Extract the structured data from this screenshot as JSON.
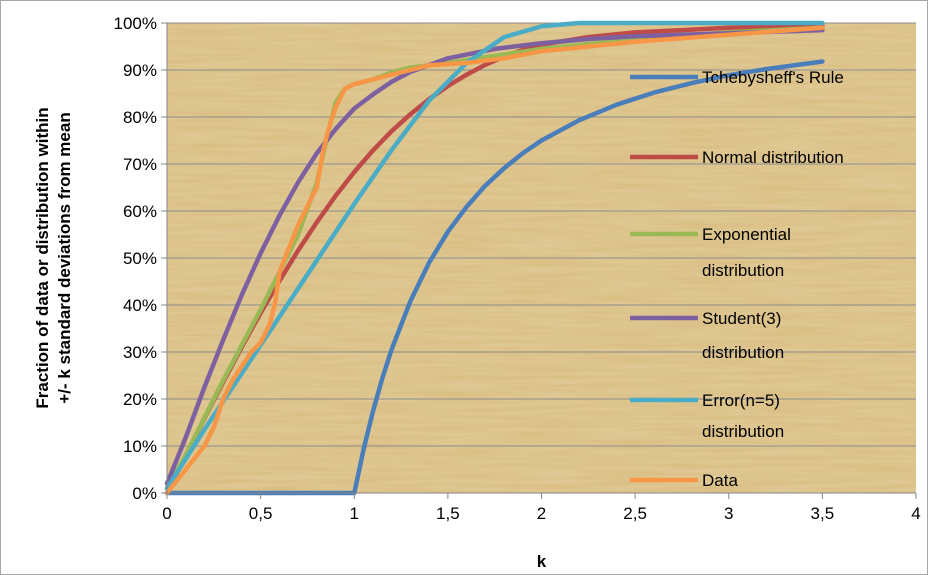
{
  "chart_data": {
    "type": "line",
    "title": "",
    "xlabel": "k",
    "ylabel_lines": [
      "Fraction of data or distribution within",
      "+/- k standard deviations from mean"
    ],
    "xlim": [
      0,
      4
    ],
    "ylim": [
      0,
      1
    ],
    "x_ticks": [
      0,
      0.5,
      1,
      1.5,
      2,
      2.5,
      3,
      3.5,
      4
    ],
    "x_tick_labels": [
      "0",
      "0,5",
      "1",
      "1,5",
      "2",
      "2,5",
      "3",
      "3,5",
      "4"
    ],
    "y_ticks": [
      0,
      0.1,
      0.2,
      0.3,
      0.4,
      0.5,
      0.6,
      0.7,
      0.8,
      0.9,
      1.0
    ],
    "y_tick_labels": [
      "0%",
      "10%",
      "20%",
      "30%",
      "40%",
      "50%",
      "60%",
      "70%",
      "80%",
      "90%",
      "100%"
    ],
    "grid": "horizontal",
    "legend_position": "right",
    "plot_background": "papyrus texture (tan #e2c88c)",
    "series": [
      {
        "name": "Tchebysheff's Rule",
        "legend_lines": [
          "Tchebysheff's Rule"
        ],
        "color": "#4a7ebb",
        "points": [
          [
            0,
            0
          ],
          [
            0.5,
            0
          ],
          [
            1,
            0
          ],
          [
            1.05,
            0.093
          ],
          [
            1.1,
            0.174
          ],
          [
            1.15,
            0.244
          ],
          [
            1.2,
            0.306
          ],
          [
            1.3,
            0.408
          ],
          [
            1.4,
            0.49
          ],
          [
            1.5,
            0.556
          ],
          [
            1.6,
            0.609
          ],
          [
            1.7,
            0.654
          ],
          [
            1.8,
            0.691
          ],
          [
            1.9,
            0.723
          ],
          [
            2,
            0.75
          ],
          [
            2.2,
            0.793
          ],
          [
            2.4,
            0.826
          ],
          [
            2.6,
            0.852
          ],
          [
            2.8,
            0.872
          ],
          [
            3,
            0.889
          ],
          [
            3.2,
            0.902
          ],
          [
            3.5,
            0.918
          ]
        ]
      },
      {
        "name": "Normal distribution",
        "legend_lines": [
          "Normal distribution"
        ],
        "color": "#be4b48",
        "points": [
          [
            0,
            0
          ],
          [
            0.1,
            0.08
          ],
          [
            0.2,
            0.159
          ],
          [
            0.3,
            0.236
          ],
          [
            0.4,
            0.311
          ],
          [
            0.5,
            0.383
          ],
          [
            0.6,
            0.451
          ],
          [
            0.7,
            0.516
          ],
          [
            0.8,
            0.576
          ],
          [
            0.9,
            0.632
          ],
          [
            1,
            0.683
          ],
          [
            1.1,
            0.729
          ],
          [
            1.2,
            0.77
          ],
          [
            1.3,
            0.806
          ],
          [
            1.4,
            0.838
          ],
          [
            1.5,
            0.866
          ],
          [
            1.6,
            0.89
          ],
          [
            1.7,
            0.911
          ],
          [
            1.8,
            0.928
          ],
          [
            1.9,
            0.943
          ],
          [
            2,
            0.954
          ],
          [
            2.25,
            0.97
          ],
          [
            2.5,
            0.98
          ],
          [
            2.75,
            0.985
          ],
          [
            3,
            0.99
          ],
          [
            3.5,
            0.995
          ]
        ]
      },
      {
        "name": "Exponential distribution",
        "legend_lines": [
          "Exponential",
          "distribution"
        ],
        "color": "#98b954",
        "points": [
          [
            0,
            0.01
          ],
          [
            0.1,
            0.08
          ],
          [
            0.2,
            0.16
          ],
          [
            0.3,
            0.24
          ],
          [
            0.4,
            0.315
          ],
          [
            0.5,
            0.39
          ],
          [
            0.6,
            0.47
          ],
          [
            0.7,
            0.55
          ],
          [
            0.8,
            0.66
          ],
          [
            0.85,
            0.75
          ],
          [
            0.9,
            0.83
          ],
          [
            0.95,
            0.86
          ],
          [
            1,
            0.87
          ],
          [
            1.1,
            0.88
          ],
          [
            1.2,
            0.895
          ],
          [
            1.3,
            0.905
          ],
          [
            1.5,
            0.915
          ],
          [
            1.75,
            0.93
          ],
          [
            2,
            0.945
          ],
          [
            2.5,
            0.965
          ],
          [
            3,
            0.98
          ],
          [
            3.5,
            0.99
          ]
        ]
      },
      {
        "name": "Student(3) distribution",
        "legend_lines": [
          "Student(3)",
          "distribution"
        ],
        "color": "#7d60a0",
        "points": [
          [
            0,
            0.02
          ],
          [
            0.1,
            0.118
          ],
          [
            0.2,
            0.225
          ],
          [
            0.3,
            0.326
          ],
          [
            0.4,
            0.422
          ],
          [
            0.5,
            0.51
          ],
          [
            0.6,
            0.59
          ],
          [
            0.7,
            0.661
          ],
          [
            0.8,
            0.723
          ],
          [
            0.9,
            0.774
          ],
          [
            1,
            0.818
          ],
          [
            1.1,
            0.848
          ],
          [
            1.2,
            0.875
          ],
          [
            1.3,
            0.896
          ],
          [
            1.5,
            0.925
          ],
          [
            1.75,
            0.945
          ],
          [
            2,
            0.957
          ],
          [
            2.25,
            0.966
          ],
          [
            2.5,
            0.972
          ],
          [
            3,
            0.978
          ],
          [
            3.5,
            0.985
          ]
        ]
      },
      {
        "name": "Error(n=5) distribution",
        "legend_lines": [
          "Error(n=5)",
          "distribution"
        ],
        "color": "#4bacc6",
        "points": [
          [
            0,
            0.01
          ],
          [
            0.2,
            0.135
          ],
          [
            0.4,
            0.255
          ],
          [
            0.6,
            0.375
          ],
          [
            0.8,
            0.495
          ],
          [
            1,
            0.615
          ],
          [
            1.2,
            0.73
          ],
          [
            1.4,
            0.835
          ],
          [
            1.6,
            0.915
          ],
          [
            1.8,
            0.97
          ],
          [
            2,
            0.993
          ],
          [
            2.2,
            1.0
          ],
          [
            2.5,
            1.0
          ],
          [
            3,
            1.0
          ],
          [
            3.5,
            1.0
          ]
        ]
      },
      {
        "name": "Data",
        "legend_lines": [
          "Data"
        ],
        "color": "#f79646",
        "points": [
          [
            0,
            0
          ],
          [
            0.1,
            0.05
          ],
          [
            0.2,
            0.1
          ],
          [
            0.25,
            0.14
          ],
          [
            0.3,
            0.2
          ],
          [
            0.35,
            0.24
          ],
          [
            0.4,
            0.27
          ],
          [
            0.45,
            0.3
          ],
          [
            0.5,
            0.32
          ],
          [
            0.55,
            0.36
          ],
          [
            0.58,
            0.41
          ],
          [
            0.6,
            0.47
          ],
          [
            0.65,
            0.52
          ],
          [
            0.7,
            0.57
          ],
          [
            0.75,
            0.61
          ],
          [
            0.8,
            0.65
          ],
          [
            0.83,
            0.72
          ],
          [
            0.86,
            0.77
          ],
          [
            0.9,
            0.82
          ],
          [
            0.95,
            0.86
          ],
          [
            1,
            0.87
          ],
          [
            1.05,
            0.875
          ],
          [
            1.15,
            0.885
          ],
          [
            1.25,
            0.895
          ],
          [
            1.4,
            0.91
          ],
          [
            1.6,
            0.915
          ],
          [
            1.8,
            0.925
          ],
          [
            2,
            0.94
          ],
          [
            2.5,
            0.96
          ],
          [
            3,
            0.975
          ],
          [
            3.5,
            0.99
          ]
        ]
      }
    ]
  }
}
